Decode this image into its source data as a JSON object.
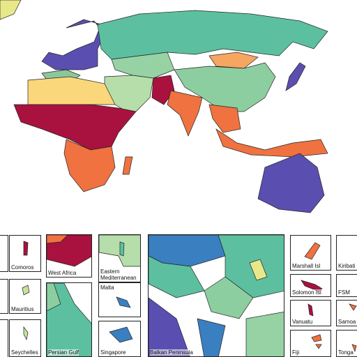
{
  "insets": [
    {
      "label": "Comoros"
    },
    {
      "label": "West Africa"
    },
    {
      "label": "Eastern Mediterranean"
    },
    {
      "label": "Mauritius"
    },
    {
      "label": "Malta"
    },
    {
      "label": "Seychelles"
    },
    {
      "label": "Persian Gulf"
    },
    {
      "label": "Singapore"
    },
    {
      "label": "Balkan Peninsula"
    },
    {
      "label": "Marshall Isl"
    },
    {
      "label": "Kiribati"
    },
    {
      "label": "Solomon Isl"
    },
    {
      "label": "FSM"
    },
    {
      "label": "Vanuatu"
    },
    {
      "label": "Samoa"
    },
    {
      "label": "Fiji"
    },
    {
      "label": "Tonga"
    }
  ]
}
